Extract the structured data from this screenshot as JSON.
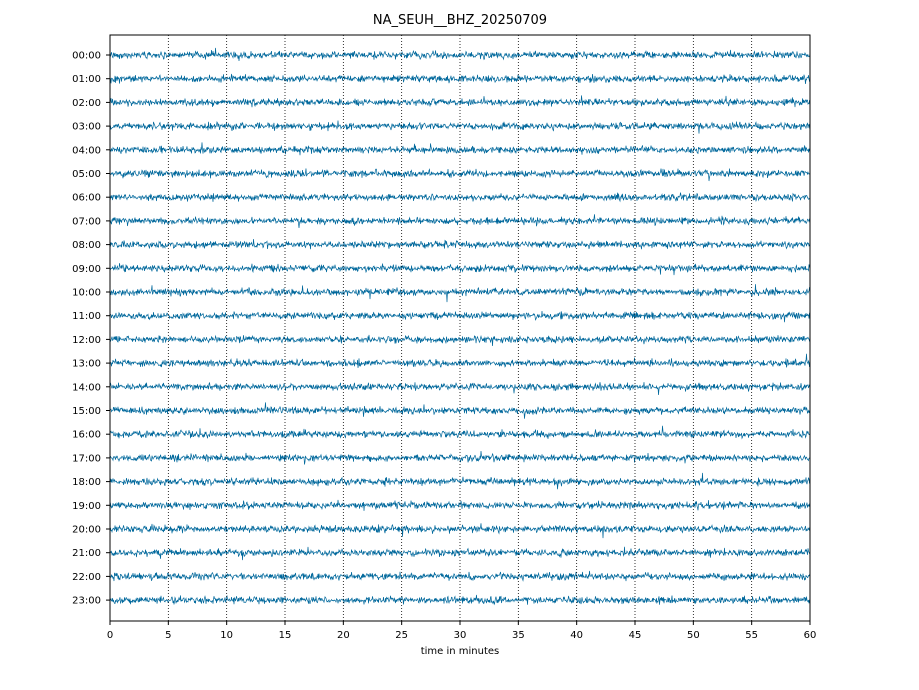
{
  "chart_data": {
    "type": "line",
    "title": "NA_SEUH__BHZ_20250709",
    "xlabel": "time in minutes",
    "ylabel": "",
    "xlim": [
      0,
      60
    ],
    "x_ticks": [
      0,
      5,
      10,
      15,
      20,
      25,
      30,
      35,
      40,
      45,
      50,
      55,
      60
    ],
    "x_tick_labels": [
      "0",
      "5",
      "10",
      "15",
      "20",
      "25",
      "30",
      "35",
      "40",
      "45",
      "50",
      "55",
      "60"
    ],
    "y_tick_labels": [
      "00:00",
      "01:00",
      "02:00",
      "03:00",
      "04:00",
      "05:00",
      "06:00",
      "07:00",
      "08:00",
      "09:00",
      "10:00",
      "11:00",
      "12:00",
      "13:00",
      "14:00",
      "15:00",
      "16:00",
      "17:00",
      "18:00",
      "19:00",
      "20:00",
      "21:00",
      "22:00",
      "23:00"
    ],
    "vertical_grid": true,
    "grid_style": "dotted",
    "trace_color": "#00689c",
    "series_description": "24 hourly seismogram traces, continuous background noise, one per hour row"
  }
}
